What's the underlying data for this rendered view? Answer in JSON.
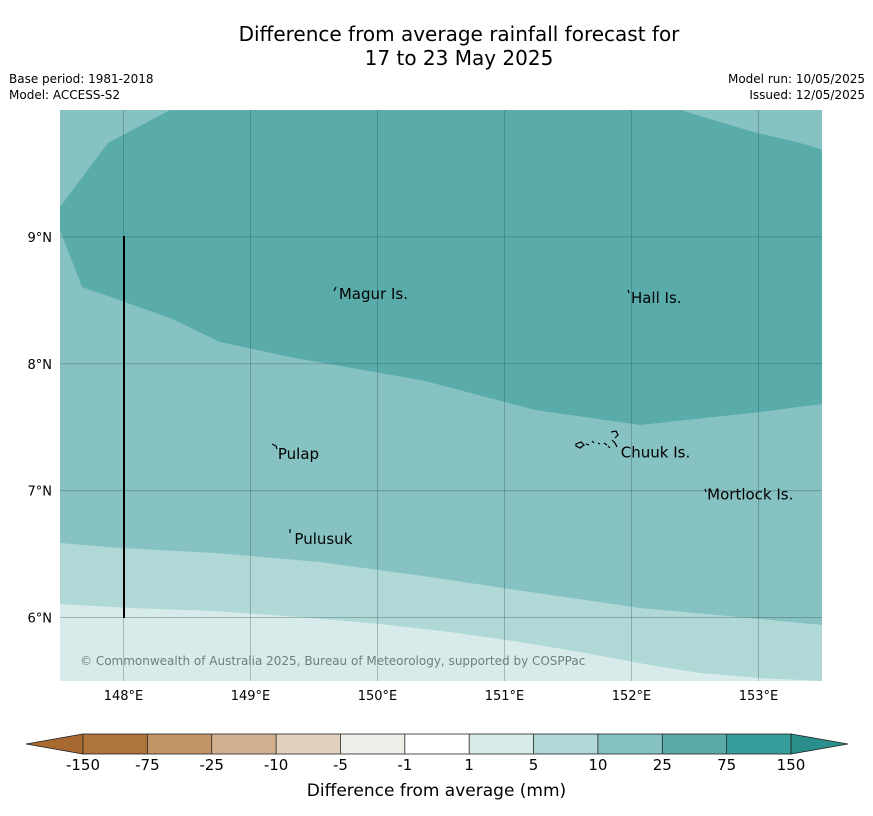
{
  "title": {
    "line1": "Difference from average rainfall forecast for",
    "line2": "17 to 23 May 2025"
  },
  "meta": {
    "base_period": "Base period: 1981-2018",
    "model": "Model: ACCESS-S2",
    "model_run": "Model run: 10/05/2025",
    "issued": "Issued: 12/05/2025"
  },
  "map": {
    "lon_range": [
      147.5,
      153.5
    ],
    "lat_range": [
      5.5,
      10.0
    ],
    "x_ticks": [
      {
        "lon": 148,
        "label": "148°E"
      },
      {
        "lon": 149,
        "label": "149°E"
      },
      {
        "lon": 150,
        "label": "150°E"
      },
      {
        "lon": 151,
        "label": "151°E"
      },
      {
        "lon": 152,
        "label": "152°E"
      },
      {
        "lon": 153,
        "label": "153°E"
      }
    ],
    "y_ticks": [
      {
        "lat": 9,
        "label": "9°N"
      },
      {
        "lat": 8,
        "label": "8°N"
      },
      {
        "lat": 7,
        "label": "7°N"
      },
      {
        "lat": 6,
        "label": "6°N"
      }
    ],
    "places": [
      {
        "name": "Magur Is.",
        "lon": 149.68,
        "lat": 8.55
      },
      {
        "name": "Hall Is.",
        "lon": 151.98,
        "lat": 8.52
      },
      {
        "name": "Pulap",
        "lon": 149.2,
        "lat": 7.29
      },
      {
        "name": "Chuuk Is.",
        "lon": 151.9,
        "lat": 7.3
      },
      {
        "name": "Mortlock Is.",
        "lon": 152.58,
        "lat": 6.97
      },
      {
        "name": "Pulusuk",
        "lon": 149.33,
        "lat": 6.62
      }
    ],
    "copyright": "© Commonwealth of Australia 2025, Bureau of Meteorology, supported by COSPPac",
    "scale_line": {
      "lon": 148,
      "lat_from": 6,
      "lat_to": 9
    },
    "shading_bands": [
      {
        "range": "1 to 5",
        "color": "#d6ebea"
      },
      {
        "range": "5 to 10",
        "color": "#afd8d7"
      },
      {
        "range": "10 to 25",
        "color": "#86c2c1"
      },
      {
        "range": "25 to 75",
        "color": "#5aacab"
      }
    ]
  },
  "colorbar": {
    "ticks": [
      "-150",
      "-75",
      "-25",
      "-10",
      "-5",
      "-1",
      "1",
      "5",
      "10",
      "25",
      "75",
      "150"
    ],
    "colors": [
      "#af7439",
      "#c39466",
      "#d2b08f",
      "#e2d1bf",
      "#efede8",
      "#ffffff",
      "#d6ebea",
      "#afd8d7",
      "#86c2c1",
      "#5aacab",
      "#359d9a"
    ],
    "extend_low_color": "#a86a30",
    "extend_high_color": "#2a8e8b",
    "label": "Difference from average (mm)"
  }
}
